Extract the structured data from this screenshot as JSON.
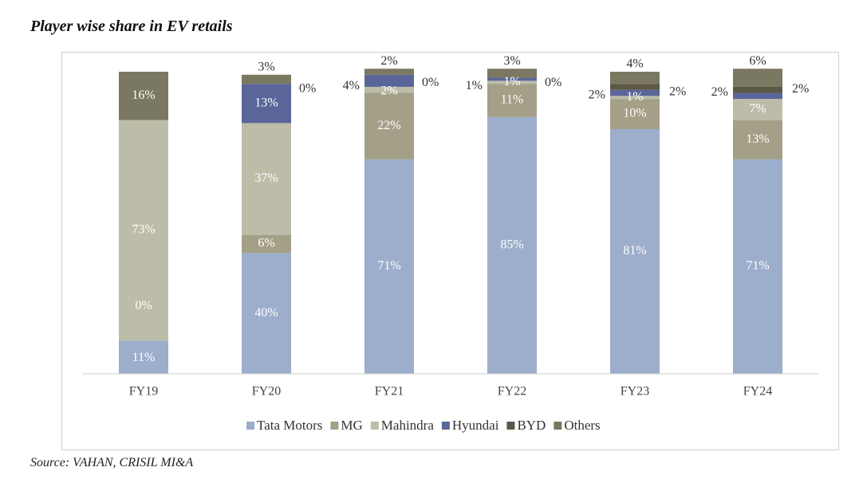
{
  "header": {
    "title": "Player wise share in EV retails"
  },
  "footer": {
    "source": "Source: VAHAN, CRISIL MI&A"
  },
  "chart_data": {
    "type": "bar",
    "stacked": true,
    "categories": [
      "FY19",
      "FY20",
      "FY21",
      "FY22",
      "FY23",
      "FY24"
    ],
    "series": [
      {
        "name": "Tata Motors",
        "color": "#9dadcc",
        "values": [
          11,
          40,
          71,
          85,
          81,
          71
        ]
      },
      {
        "name": "MG",
        "color": "#a49f87",
        "values": [
          0,
          6,
          22,
          11,
          10,
          13
        ]
      },
      {
        "name": "Mahindra",
        "color": "#bcbca8",
        "values": [
          73,
          37,
          2,
          1,
          1,
          7
        ]
      },
      {
        "name": "Hyundai",
        "color": "#5a6699",
        "values": [
          0,
          13,
          4,
          1,
          2,
          2
        ]
      },
      {
        "name": "BYD",
        "color": "#5d5846",
        "values": [
          0,
          0,
          0,
          0,
          2,
          2
        ]
      },
      {
        "name": "Others",
        "color": "#7a7860",
        "values": [
          16,
          3,
          2,
          3,
          4,
          6
        ]
      }
    ],
    "data_labels": [
      [
        "11%",
        "0%",
        "73%",
        "",
        "",
        "16%"
      ],
      [
        "40%",
        "6%",
        "37%",
        "13%",
        "0%",
        "3%"
      ],
      [
        "71%",
        "22%",
        "2%",
        "4%",
        "0%",
        "2%"
      ],
      [
        "85%",
        "11%",
        "1%",
        "1%",
        "0%",
        "3%"
      ],
      [
        "81%",
        "10%",
        "1%",
        "2%",
        "2%",
        "4%"
      ],
      [
        "71%",
        "13%",
        "7%",
        "2%",
        "2%",
        "6%"
      ]
    ],
    "legend_position": "bottom",
    "grid": false,
    "ylim": [
      0,
      100
    ]
  }
}
